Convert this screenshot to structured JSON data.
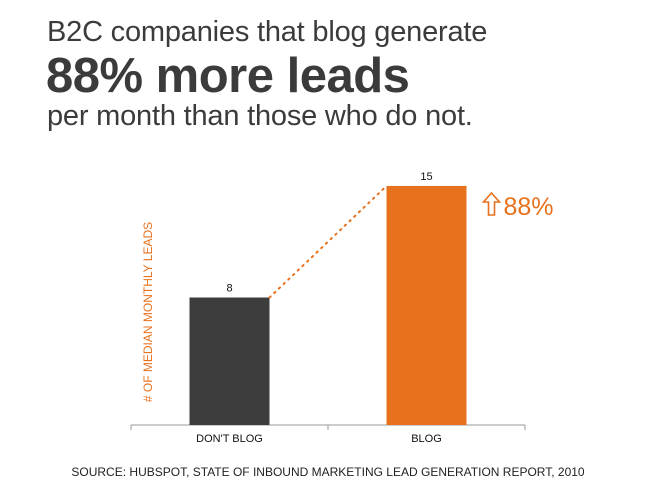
{
  "headline": {
    "line1": "B2C companies that blog generate",
    "highlight": "88% more leads",
    "line3": "per month than those who do not."
  },
  "chart_data": {
    "type": "bar",
    "categories": [
      "DON'T BLOG",
      "BLOG"
    ],
    "values": [
      8,
      15
    ],
    "ylabel": "# OF MEDIAN MONTHLY LEADS",
    "ylim": [
      0,
      16
    ],
    "grid": false,
    "bar_colors": [
      "#3d3d3d",
      "#e8711e"
    ],
    "annotation": {
      "text": "88%",
      "icon": "up-arrow-icon",
      "color": "#e8711e"
    },
    "connector": "dotted",
    "connector_color": "#e8711e"
  },
  "source": "SOURCE: HUBSPOT, STATE OF INBOUND MARKETING LEAD GENERATION REPORT, 2010"
}
